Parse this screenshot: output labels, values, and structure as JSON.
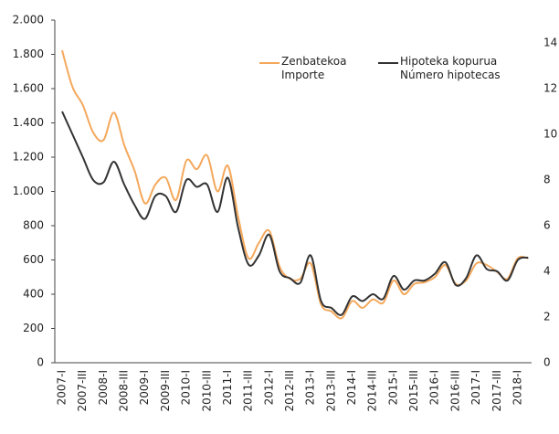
{
  "chart_data": {
    "type": "line",
    "categories": [
      "2007-I",
      null,
      "2007-III",
      null,
      "2008-I",
      null,
      "2008-III",
      null,
      "2009-I",
      null,
      "2009-III",
      null,
      "2010-I",
      null,
      "2010-III",
      null,
      "2011-I",
      null,
      "2011-III",
      null,
      "2012-I",
      null,
      "2012-III",
      null,
      "2013-I",
      null,
      "2013-III",
      null,
      "2014-I",
      null,
      "2014-III",
      null,
      "2015-I",
      null,
      "2015-III",
      null,
      "2016-I",
      null,
      "2016-III",
      null,
      "2017-I",
      null,
      "2017-III",
      null,
      "2018-I",
      null
    ],
    "series": [
      {
        "name": "Zenbatekoa\nImporte",
        "color": "#f4a85c",
        "values": [
          1824,
          1610,
          1504,
          1344,
          1300,
          1460,
          1270,
          1120,
          930,
          1040,
          1080,
          950,
          1180,
          1130,
          1210,
          1000,
          1150,
          850,
          610,
          700,
          770,
          560,
          490,
          490,
          580,
          340,
          300,
          260,
          360,
          320,
          370,
          350,
          480,
          400,
          460,
          470,
          500,
          570,
          460,
          480,
          580,
          570,
          530,
          490,
          610,
          610
        ]
      },
      {
        "name": "Hipoteka kopurua\nNúmero hipotecas",
        "color": "#333333",
        "axis": "y2",
        "values": [
          11.0,
          10.0,
          9.0,
          8.0,
          7.9,
          8.8,
          7.8,
          6.9,
          6.3,
          7.3,
          7.3,
          6.6,
          8.0,
          7.7,
          7.8,
          6.6,
          8.1,
          5.9,
          4.3,
          4.7,
          5.6,
          4.0,
          3.7,
          3.5,
          4.7,
          2.7,
          2.4,
          2.1,
          2.9,
          2.7,
          3.0,
          2.8,
          3.8,
          3.2,
          3.6,
          3.6,
          3.9,
          4.4,
          3.4,
          3.7,
          4.7,
          4.1,
          4.0,
          3.6,
          4.5,
          4.6
        ]
      }
    ],
    "ylim": [
      0,
      2000
    ],
    "yticks": [
      0,
      200,
      400,
      600,
      800,
      {
        "value": 1000,
        "label": "1.000"
      },
      {
        "value": 1200,
        "label": "1.200"
      },
      {
        "value": 1400,
        "label": "1.400"
      },
      {
        "value": 1600,
        "label": "1.600"
      },
      {
        "value": 1800,
        "label": "1.800"
      },
      {
        "value": 2000,
        "label": "2.000"
      }
    ],
    "y2lim": [
      0,
      15
    ],
    "y2ticks": [
      0,
      2,
      4,
      6,
      8,
      10,
      12,
      14
    ],
    "legend": "top-right"
  }
}
